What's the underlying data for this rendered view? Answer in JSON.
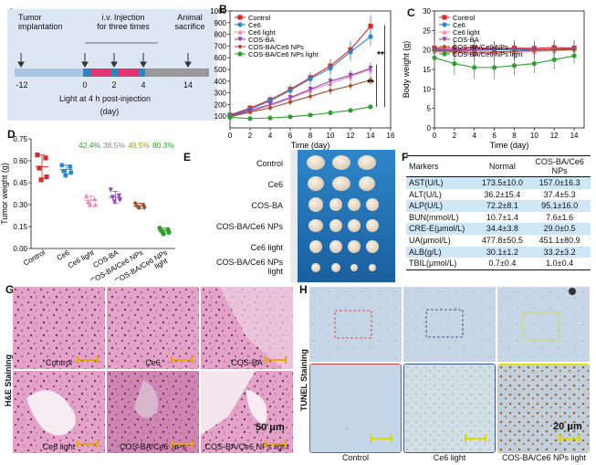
{
  "panels": {
    "A": {
      "label": "A",
      "tumor_implantation": "Tumor\nimplantation",
      "injection": "i.v. Injection\nfor three times",
      "animal_sacrifice": "Animal\nsacrifice",
      "days": [
        "-12",
        "0",
        "2",
        "4",
        "14"
      ],
      "light_note": "Light at 4 h post-injection",
      "unit": "(day)"
    },
    "B": {
      "label": "B"
    },
    "C": {
      "label": "C"
    },
    "D": {
      "label": "D"
    },
    "E": {
      "label": "E",
      "groups": [
        "Control",
        "Ce6",
        "COS-BA",
        "COS-BA/Ce6 NPs",
        "Ce6 light",
        "COS-BA/Ce6 NPs\nlight"
      ]
    },
    "F": {
      "label": "F",
      "headers": [
        "Markers",
        "Normal",
        "COS-BA/Ce6\nNPs"
      ],
      "rows": [
        [
          "AST(U/L)",
          "173.5±10.0",
          "157.0±16.3"
        ],
        [
          "ALT(U/L)",
          "36.2±15.4",
          "37.4±5.3"
        ],
        [
          "ALP(U/L)",
          "72.2±8.1",
          "95.1±16.0"
        ],
        [
          "BUN(mmol/L)",
          "10.7±1.4",
          "7.6±1.6"
        ],
        [
          "CRE-E(μmol/L)",
          "34.4±3.8",
          "29.0±0.5"
        ],
        [
          "UA(μmol/L)",
          "477.8±50.5",
          "451.1±80.9"
        ],
        [
          "ALB(g/L)",
          "30.1±1.2",
          "33.2±3.2"
        ],
        [
          "TBIL(μmol/L)",
          "0.7±0.4",
          "1.0±0.4"
        ]
      ]
    },
    "G": {
      "label": "G",
      "side_title": "H&E Staining",
      "captions": [
        "Control",
        "Ce6",
        "COS-BA",
        "Ce6 light",
        "COS-BA/Ce6 NPs",
        "COS-BA/Ce6 NPs light"
      ],
      "scale": "50 μm"
    },
    "H": {
      "label": "H",
      "side_title": "TUNEL Staining",
      "captions": [
        "Control",
        "Ce6 light",
        "COS-BA/Ce6 NPs light"
      ],
      "scale": "20 μm"
    }
  },
  "colors": {
    "control": "#d62c2c",
    "ce6": "#2e86c1",
    "ce6_light": "#e98bb5",
    "cosba": "#8e44ad",
    "cosba_ce6": "#a0522d",
    "cosba_ce6_light": "#2ca02c"
  },
  "chart_data": [
    {
      "id": "B",
      "type": "line",
      "xlabel": "Time (day)",
      "ylabel": "Tumor volume (mm³)",
      "xlim": [
        0,
        16
      ],
      "ylim": [
        0,
        1000
      ],
      "xticks": [
        0,
        2,
        4,
        6,
        8,
        10,
        12,
        14,
        16
      ],
      "yticks": [
        100,
        200,
        300,
        400,
        500,
        600,
        700,
        800,
        900,
        1000
      ],
      "x": [
        0,
        2,
        4,
        6,
        8,
        10,
        12,
        14
      ],
      "legend_position": "top-left",
      "annotations": [
        "**",
        "**"
      ],
      "series": [
        {
          "name": "Control",
          "key": "control",
          "values": [
            110,
            170,
            240,
            330,
            430,
            530,
            670,
            870
          ],
          "err": [
            15,
            25,
            35,
            40,
            45,
            60,
            70,
            90
          ]
        },
        {
          "name": "Ce6",
          "key": "ce6",
          "values": [
            105,
            160,
            230,
            320,
            420,
            510,
            650,
            780
          ],
          "err": [
            15,
            30,
            40,
            50,
            55,
            60,
            80,
            80
          ]
        },
        {
          "name": "Ce6 light",
          "key": "ce6_light",
          "values": [
            100,
            140,
            190,
            250,
            320,
            380,
            440,
            500
          ],
          "err": [
            10,
            20,
            25,
            30,
            35,
            40,
            45,
            50
          ]
        },
        {
          "name": "COS-BA",
          "key": "cosba",
          "values": [
            100,
            150,
            200,
            260,
            330,
            400,
            450,
            510
          ],
          "err": [
            10,
            20,
            25,
            30,
            35,
            40,
            45,
            50
          ]
        },
        {
          "name": "COS-BA/Ce6 NPs",
          "key": "cosba_ce6",
          "values": [
            95,
            135,
            170,
            220,
            270,
            320,
            360,
            410
          ],
          "err": [
            10,
            15,
            20,
            25,
            30,
            35,
            35,
            40
          ]
        },
        {
          "name": "COS-BA/Ce6 NPs light",
          "key": "cosba_ce6_light",
          "values": [
            90,
            80,
            85,
            95,
            110,
            130,
            150,
            180
          ],
          "err": [
            10,
            10,
            10,
            10,
            12,
            15,
            15,
            20
          ]
        }
      ]
    },
    {
      "id": "C",
      "type": "line",
      "xlabel": "Time (day)",
      "ylabel": "Body weight (g)",
      "xlim": [
        0,
        15
      ],
      "ylim": [
        0,
        30
      ],
      "xticks": [
        0,
        2,
        4,
        6,
        8,
        10,
        12,
        14
      ],
      "yticks": [
        0,
        5,
        10,
        15,
        20,
        25,
        30
      ],
      "x": [
        0,
        2,
        4,
        6,
        8,
        10,
        12,
        14
      ],
      "legend_position": "top-left",
      "series": [
        {
          "name": "Control",
          "key": "control",
          "values": [
            20.5,
            20.4,
            20.6,
            20.3,
            20.5,
            20.4,
            20.6,
            20.5
          ],
          "err": [
            2,
            2,
            2,
            2,
            2,
            2,
            2,
            2
          ]
        },
        {
          "name": "Ce6",
          "key": "ce6",
          "values": [
            20.0,
            19.8,
            19.9,
            20.0,
            20.1,
            20.0,
            20.2,
            20.3
          ],
          "err": [
            2,
            2,
            2,
            2,
            2,
            2,
            2,
            2
          ]
        },
        {
          "name": "Ce6 light",
          "key": "ce6_light",
          "values": [
            19.5,
            19.3,
            19.0,
            19.2,
            19.4,
            19.6,
            19.8,
            20.0
          ],
          "err": [
            2,
            2,
            2,
            2,
            2,
            2,
            2,
            2
          ]
        },
        {
          "name": "COS-BA",
          "key": "cosba",
          "values": [
            20.2,
            20.0,
            20.1,
            20.2,
            20.3,
            20.1,
            20.2,
            20.4
          ],
          "err": [
            2,
            2,
            2,
            2,
            2,
            2,
            2,
            2
          ]
        },
        {
          "name": "COS-BA/Ce6 NPs",
          "key": "cosba_ce6",
          "values": [
            19.8,
            19.6,
            19.4,
            19.5,
            19.7,
            19.9,
            20.0,
            20.1
          ],
          "err": [
            2,
            2,
            2,
            2,
            2,
            2,
            2,
            2
          ]
        },
        {
          "name": "COS-BA/Ce6 NPs light",
          "key": "cosba_ce6_light",
          "values": [
            18.0,
            16.5,
            15.5,
            15.5,
            16.0,
            16.5,
            17.5,
            18.5
          ],
          "err": [
            2.5,
            3,
            3,
            3,
            2.5,
            2.5,
            2.5,
            2
          ]
        }
      ]
    },
    {
      "id": "D",
      "type": "scatter",
      "ylabel": "Tumor weight (g)",
      "ylim": [
        0,
        0.75
      ],
      "yticks": [
        0.0,
        0.15,
        0.3,
        0.45,
        0.6,
        0.75
      ],
      "categories": [
        "Control",
        "Ce6",
        "Ce6 light",
        "COS-BA",
        "COS-BA/Ce6 NPs",
        "COS-BA/Ce6 NPs\nlight"
      ],
      "inhibition_labels": [
        "42.4%",
        "38.5%",
        "49.5%",
        "80.3%"
      ],
      "groups": [
        {
          "key": "control",
          "mean": 0.56,
          "sd": 0.08,
          "points": [
            0.64,
            0.62,
            0.55,
            0.49,
            0.47
          ]
        },
        {
          "key": "ce6",
          "mean": 0.54,
          "sd": 0.03,
          "points": [
            0.57,
            0.56,
            0.53,
            0.52,
            0.5
          ]
        },
        {
          "key": "ce6_light",
          "mean": 0.33,
          "sd": 0.03,
          "points": [
            0.36,
            0.34,
            0.32,
            0.3,
            0.3
          ]
        },
        {
          "key": "cosba",
          "mean": 0.35,
          "sd": 0.04,
          "points": [
            0.4,
            0.36,
            0.35,
            0.33,
            0.32
          ]
        },
        {
          "key": "cosba_ce6",
          "mean": 0.29,
          "sd": 0.02,
          "points": [
            0.31,
            0.3,
            0.29,
            0.28,
            0.28
          ]
        },
        {
          "key": "cosba_ce6_light",
          "mean": 0.12,
          "sd": 0.02,
          "points": [
            0.14,
            0.13,
            0.12,
            0.11,
            0.1
          ]
        }
      ]
    }
  ]
}
